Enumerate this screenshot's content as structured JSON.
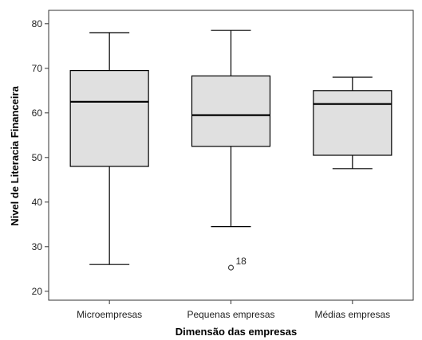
{
  "chart_data": {
    "type": "boxplot",
    "title": "",
    "xlabel": "Dimensão das empresas",
    "ylabel": "Nivel de Literacia Financeira",
    "ylim": [
      18,
      83
    ],
    "yticks": [
      20,
      30,
      40,
      50,
      60,
      70,
      80
    ],
    "grid": false,
    "box_fill": "#e0e0e0",
    "categories": [
      "Microempresas",
      "Pequenas empresas",
      "Médias empresas"
    ],
    "boxes": [
      {
        "category": "Microempresas",
        "min": 26,
        "q1": 48,
        "median": 62.5,
        "q3": 69.5,
        "max": 78,
        "outliers": []
      },
      {
        "category": "Pequenas empresas",
        "min": 34.5,
        "q1": 52.5,
        "median": 59.5,
        "q3": 68.3,
        "max": 78.5,
        "outliers": [
          {
            "value": 25.3,
            "label": "18"
          }
        ]
      },
      {
        "category": "Médias empresas",
        "min": 47.5,
        "q1": 50.5,
        "median": 62,
        "q3": 65,
        "max": 68,
        "outliers": []
      }
    ]
  }
}
